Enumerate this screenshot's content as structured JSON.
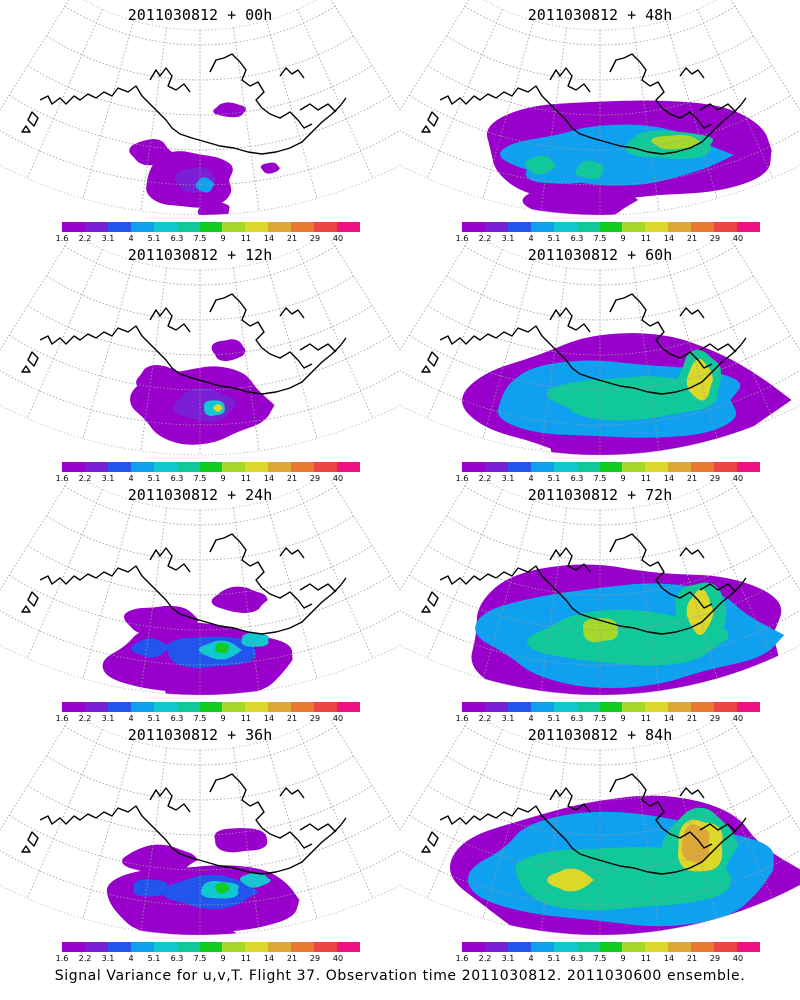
{
  "colorbar": {
    "colors": [
      "#9900cc",
      "#7a1fd6",
      "#2255ee",
      "#0fa0f0",
      "#12c8d0",
      "#10c89a",
      "#12cc22",
      "#a6d82c",
      "#dcd82a",
      "#dea836",
      "#e77a30",
      "#ee4444",
      "#ee1080"
    ],
    "labels": [
      "1.6",
      "2.2",
      "3.1",
      "4",
      "5.1",
      "6.3",
      "7.5",
      "9",
      "11",
      "14",
      "21",
      "29",
      "40"
    ]
  },
  "panels": [
    {
      "title": "2011030812 + 00h",
      "level": 0
    },
    {
      "title": "2011030812 + 48h",
      "level": 3
    },
    {
      "title": "2011030812 + 12h",
      "level": 1
    },
    {
      "title": "2011030812 + 60h",
      "level": 4
    },
    {
      "title": "2011030812 + 24h",
      "level": 2
    },
    {
      "title": "2011030812 + 72h",
      "level": 5
    },
    {
      "title": "2011030812 + 36h",
      "level": 2
    },
    {
      "title": "2011030812 + 84h",
      "level": 6
    }
  ],
  "footer": "Signal Variance for u,v,T. Flight 37. Observation time 2011030812. 2011030600 ensemble."
}
